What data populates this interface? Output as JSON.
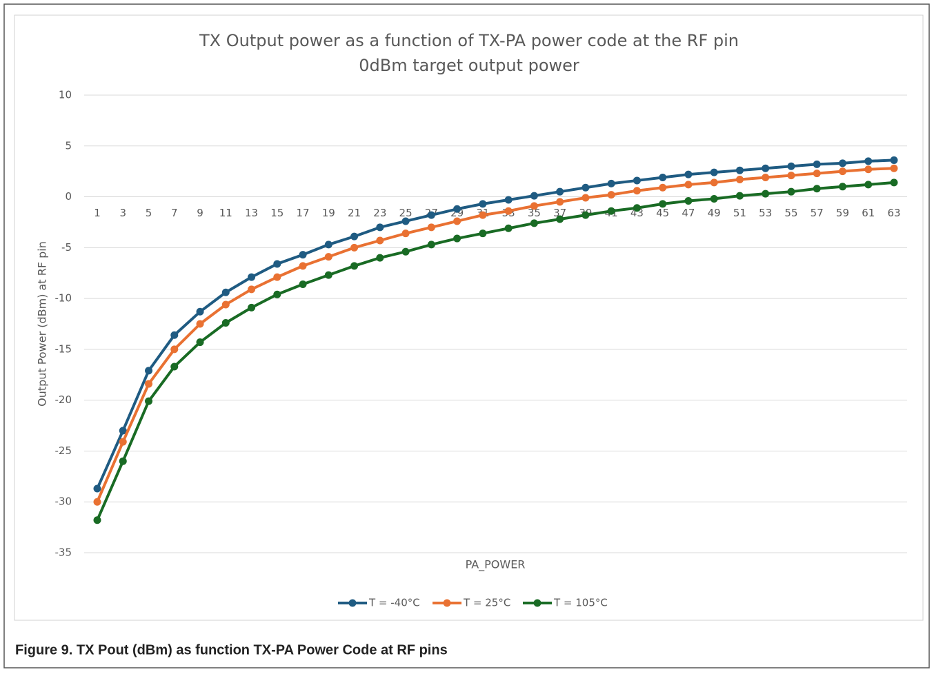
{
  "chart_data": {
    "type": "line",
    "title": "TX Output power as a function of TX-PA power code at the RF pin",
    "subtitle": "0dBm target output power",
    "x_label": "PA_POWER",
    "y_label": "Output Power (dBm) at RF pin",
    "caption": "Figure 9.  TX Pout (dBm) as function TX-PA Power Code at RF pins",
    "categories": [
      "1",
      "3",
      "5",
      "7",
      "9",
      "11",
      "13",
      "15",
      "17",
      "19",
      "21",
      "23",
      "25",
      "27",
      "29",
      "31",
      "33",
      "35",
      "37",
      "39",
      "41",
      "43",
      "45",
      "47",
      "49",
      "51",
      "53",
      "55",
      "57",
      "59",
      "61",
      "63"
    ],
    "series": [
      {
        "name": "T = -40°C",
        "color": "#1f5b82",
        "values": [
          -28.7,
          -23.0,
          -17.1,
          -13.6,
          -11.3,
          -9.4,
          -7.9,
          -6.6,
          -5.7,
          -4.7,
          -3.9,
          -3.0,
          -2.4,
          -1.8,
          -1.2,
          -0.7,
          -0.3,
          0.1,
          0.5,
          0.9,
          1.3,
          1.6,
          1.9,
          2.2,
          2.4,
          2.6,
          2.8,
          3.0,
          3.2,
          3.3,
          3.5,
          3.6
        ]
      },
      {
        "name": "T = 25°C",
        "color": "#e97132",
        "values": [
          -30.0,
          -24.1,
          -18.4,
          -15.0,
          -12.5,
          -10.6,
          -9.1,
          -7.9,
          -6.8,
          -5.9,
          -5.0,
          -4.3,
          -3.6,
          -3.0,
          -2.4,
          -1.8,
          -1.4,
          -0.9,
          -0.5,
          -0.1,
          0.2,
          0.6,
          0.9,
          1.2,
          1.4,
          1.7,
          1.9,
          2.1,
          2.3,
          2.5,
          2.7,
          2.8
        ]
      },
      {
        "name": "T = 105°C",
        "color": "#196b24",
        "values": [
          -31.8,
          -26.0,
          -20.1,
          -16.7,
          -14.3,
          -12.4,
          -10.9,
          -9.6,
          -8.6,
          -7.7,
          -6.8,
          -6.0,
          -5.4,
          -4.7,
          -4.1,
          -3.6,
          -3.1,
          -2.6,
          -2.2,
          -1.8,
          -1.4,
          -1.1,
          -0.7,
          -0.4,
          -0.2,
          0.1,
          0.3,
          0.5,
          0.8,
          1.0,
          1.2,
          1.4
        ]
      }
    ],
    "ylim": [
      -35,
      10
    ],
    "yticks": [
      10,
      5,
      0,
      -5,
      -10,
      -15,
      -20,
      -25,
      -30,
      -35
    ],
    "grid": true,
    "legend": "bottom"
  }
}
